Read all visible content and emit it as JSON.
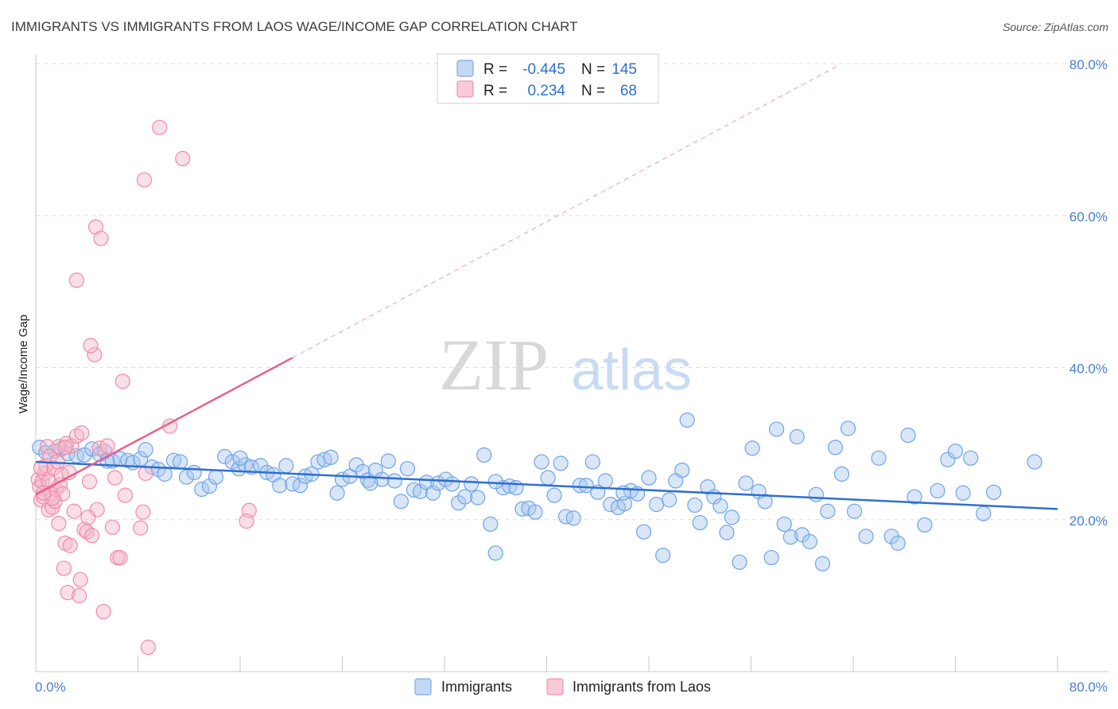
{
  "title": "IMMIGRANTS VS IMMIGRANTS FROM LAOS WAGE/INCOME GAP CORRELATION CHART",
  "source": "Source: ZipAtlas.com",
  "watermark": {
    "zip": "ZIP",
    "atlas": "atlas"
  },
  "legend_box": {
    "rows": [
      {
        "r_label": "R =",
        "r_value": "-0.445",
        "n_label": "N =",
        "n_value": "145",
        "color": "#a9c8f0"
      },
      {
        "r_label": "R =",
        "r_value": "0.234",
        "n_label": "N =",
        "n_value": "68",
        "color": "#f5b8ca"
      }
    ]
  },
  "bottom_legend": [
    {
      "label": "Immigrants",
      "color": "#a9c8f0"
    },
    {
      "label": "Immigrants from Laos",
      "color": "#f5b8ca"
    }
  ],
  "chart_data": {
    "type": "scatter",
    "title": "IMMIGRANTS VS IMMIGRANTS FROM LAOS WAGE/INCOME GAP CORRELATION CHART",
    "xlabel": "",
    "ylabel": "Wage/Income Gap",
    "xlim": [
      0,
      80
    ],
    "ylim": [
      0,
      80
    ],
    "x_tick_labels": [
      "0.0%",
      "80.0%"
    ],
    "y_tick_labels": [
      "20.0%",
      "40.0%",
      "60.0%",
      "80.0%"
    ],
    "y_ticks": [
      20,
      40,
      60,
      80
    ],
    "grid": true,
    "legend_position": "top-center",
    "series": [
      {
        "name": "Immigrants",
        "color": "#6fa3e8",
        "trend": {
          "x": [
            0,
            80
          ],
          "y": [
            27.6,
            21.4
          ],
          "style": "solid",
          "color": "#2f6fcf"
        },
        "points": [
          [
            0.3,
            29.5
          ],
          [
            0.8,
            28.8
          ],
          [
            1.5,
            29.0
          ],
          [
            2.0,
            29.3
          ],
          [
            2.5,
            28.7
          ],
          [
            3.2,
            28.4
          ],
          [
            3.8,
            28.5
          ],
          [
            4.4,
            29.3
          ],
          [
            5.0,
            28.6
          ],
          [
            5.6,
            27.7
          ],
          [
            6.0,
            27.7
          ],
          [
            6.6,
            28.0
          ],
          [
            7.2,
            27.8
          ],
          [
            7.6,
            27.5
          ],
          [
            8.2,
            28.0
          ],
          [
            8.6,
            29.2
          ],
          [
            9.1,
            26.9
          ],
          [
            9.6,
            26.6
          ],
          [
            10.1,
            26.0
          ],
          [
            10.8,
            27.8
          ],
          [
            11.3,
            27.6
          ],
          [
            11.8,
            25.6
          ],
          [
            12.4,
            26.2
          ],
          [
            13.0,
            24.0
          ],
          [
            13.6,
            24.4
          ],
          [
            14.1,
            25.6
          ],
          [
            14.8,
            28.3
          ],
          [
            15.4,
            27.6
          ],
          [
            15.9,
            26.7
          ],
          [
            16.4,
            27.2
          ],
          [
            16.9,
            26.9
          ],
          [
            17.6,
            27.1
          ],
          [
            18.1,
            26.2
          ],
          [
            18.6,
            25.9
          ],
          [
            19.1,
            24.5
          ],
          [
            19.6,
            27.1
          ],
          [
            20.1,
            24.7
          ],
          [
            20.7,
            24.5
          ],
          [
            21.1,
            25.7
          ],
          [
            21.6,
            26.0
          ],
          [
            22.1,
            27.6
          ],
          [
            22.6,
            27.9
          ],
          [
            23.1,
            28.2
          ],
          [
            23.6,
            23.5
          ],
          [
            24.0,
            25.3
          ],
          [
            24.6,
            25.7
          ],
          [
            25.1,
            27.2
          ],
          [
            25.6,
            26.3
          ],
          [
            26.0,
            25.2
          ],
          [
            26.6,
            26.5
          ],
          [
            27.1,
            25.3
          ],
          [
            27.6,
            27.7
          ],
          [
            28.1,
            25.1
          ],
          [
            28.6,
            22.4
          ],
          [
            29.1,
            26.7
          ],
          [
            29.6,
            23.9
          ],
          [
            30.1,
            23.7
          ],
          [
            30.6,
            24.9
          ],
          [
            31.1,
            23.5
          ],
          [
            31.5,
            24.8
          ],
          [
            32.1,
            25.3
          ],
          [
            32.6,
            24.7
          ],
          [
            33.1,
            22.2
          ],
          [
            33.6,
            23.0
          ],
          [
            34.1,
            24.7
          ],
          [
            34.6,
            22.9
          ],
          [
            35.1,
            28.5
          ],
          [
            35.6,
            19.4
          ],
          [
            36.0,
            15.6
          ],
          [
            36.6,
            24.2
          ],
          [
            37.1,
            24.4
          ],
          [
            37.6,
            24.2
          ],
          [
            38.1,
            21.4
          ],
          [
            38.6,
            21.5
          ],
          [
            39.1,
            21.0
          ],
          [
            39.6,
            27.6
          ],
          [
            40.1,
            25.5
          ],
          [
            40.6,
            23.2
          ],
          [
            41.1,
            27.4
          ],
          [
            41.5,
            20.4
          ],
          [
            42.1,
            20.2
          ],
          [
            42.6,
            24.5
          ],
          [
            43.1,
            24.5
          ],
          [
            43.6,
            27.6
          ],
          [
            44.0,
            23.6
          ],
          [
            44.6,
            25.1
          ],
          [
            45.0,
            22.0
          ],
          [
            45.6,
            21.6
          ],
          [
            46.1,
            22.1
          ],
          [
            46.6,
            23.8
          ],
          [
            47.1,
            23.4
          ],
          [
            47.6,
            18.4
          ],
          [
            48.0,
            25.5
          ],
          [
            48.6,
            22.0
          ],
          [
            49.1,
            15.3
          ],
          [
            49.6,
            22.6
          ],
          [
            50.1,
            25.1
          ],
          [
            50.6,
            26.5
          ],
          [
            51.0,
            33.1
          ],
          [
            51.6,
            21.9
          ],
          [
            52.0,
            19.6
          ],
          [
            52.6,
            24.3
          ],
          [
            53.1,
            23.0
          ],
          [
            53.6,
            21.8
          ],
          [
            54.1,
            18.3
          ],
          [
            54.5,
            20.3
          ],
          [
            55.1,
            14.4
          ],
          [
            55.6,
            24.8
          ],
          [
            56.1,
            29.4
          ],
          [
            56.6,
            23.7
          ],
          [
            57.1,
            22.4
          ],
          [
            57.6,
            15.0
          ],
          [
            58.0,
            31.9
          ],
          [
            58.6,
            19.4
          ],
          [
            59.1,
            17.7
          ],
          [
            59.6,
            30.9
          ],
          [
            60.0,
            18.0
          ],
          [
            60.6,
            17.1
          ],
          [
            61.1,
            23.3
          ],
          [
            61.6,
            14.2
          ],
          [
            62.0,
            21.1
          ],
          [
            62.6,
            29.5
          ],
          [
            63.1,
            26.0
          ],
          [
            63.6,
            32.0
          ],
          [
            64.1,
            21.1
          ],
          [
            65.0,
            17.8
          ],
          [
            66.0,
            28.1
          ],
          [
            67.0,
            17.8
          ],
          [
            67.5,
            16.9
          ],
          [
            68.3,
            31.1
          ],
          [
            68.8,
            23.0
          ],
          [
            69.6,
            19.3
          ],
          [
            70.6,
            23.8
          ],
          [
            71.4,
            27.9
          ],
          [
            72.0,
            29.0
          ],
          [
            72.6,
            23.5
          ],
          [
            73.2,
            28.1
          ],
          [
            74.2,
            20.8
          ],
          [
            75.0,
            23.6
          ],
          [
            78.2,
            27.6
          ],
          [
            5.4,
            29.0
          ],
          [
            16.0,
            28.1
          ],
          [
            26.2,
            24.8
          ],
          [
            36.0,
            25.0
          ],
          [
            46.0,
            23.5
          ]
        ]
      },
      {
        "name": "Immigrants from Laos",
        "color": "#f08aa8",
        "trend": {
          "x": [
            0,
            20.1
          ],
          "y": [
            23.3,
            41.3
          ],
          "style": "solid",
          "color": "#e8608a",
          "dashed_extension": {
            "x": [
              20.1,
              62.9
            ],
            "y": [
              41.3,
              79.8
            ]
          }
        },
        "points": [
          [
            0.2,
            25.3
          ],
          [
            0.3,
            24.3
          ],
          [
            0.4,
            22.6
          ],
          [
            0.5,
            25.0
          ],
          [
            0.6,
            23.0
          ],
          [
            0.7,
            26.1
          ],
          [
            0.8,
            27.1
          ],
          [
            0.9,
            29.6
          ],
          [
            1.0,
            21.3
          ],
          [
            1.1,
            28.3
          ],
          [
            1.2,
            23.5
          ],
          [
            1.3,
            21.6
          ],
          [
            1.4,
            26.8
          ],
          [
            1.5,
            22.4
          ],
          [
            1.6,
            24.0
          ],
          [
            1.7,
            27.6
          ],
          [
            1.8,
            29.6
          ],
          [
            1.9,
            24.6
          ],
          [
            2.0,
            25.9
          ],
          [
            2.1,
            23.4
          ],
          [
            2.2,
            13.6
          ],
          [
            2.3,
            16.9
          ],
          [
            2.4,
            30.0
          ],
          [
            2.5,
            10.4
          ],
          [
            2.6,
            26.2
          ],
          [
            2.8,
            29.7
          ],
          [
            3.0,
            21.1
          ],
          [
            3.2,
            31.0
          ],
          [
            3.4,
            10.0
          ],
          [
            3.6,
            31.4
          ],
          [
            3.8,
            18.7
          ],
          [
            4.0,
            18.4
          ],
          [
            4.2,
            25.0
          ],
          [
            4.4,
            17.9
          ],
          [
            4.6,
            41.7
          ],
          [
            4.8,
            21.3
          ],
          [
            5.0,
            29.4
          ],
          [
            5.3,
            7.9
          ],
          [
            5.6,
            29.7
          ],
          [
            6.0,
            19.0
          ],
          [
            6.2,
            25.5
          ],
          [
            6.4,
            15.0
          ],
          [
            6.6,
            15.0
          ],
          [
            6.8,
            38.2
          ],
          [
            7.0,
            23.2
          ],
          [
            8.2,
            18.9
          ],
          [
            8.4,
            21.0
          ],
          [
            8.6,
            26.1
          ],
          [
            8.8,
            3.2
          ],
          [
            10.5,
            32.3
          ],
          [
            9.7,
            71.6
          ],
          [
            11.5,
            67.5
          ],
          [
            8.5,
            64.7
          ],
          [
            4.7,
            58.5
          ],
          [
            5.1,
            57.0
          ],
          [
            3.2,
            51.5
          ],
          [
            4.3,
            42.9
          ],
          [
            16.7,
            21.2
          ],
          [
            16.5,
            19.8
          ],
          [
            1.0,
            25.0
          ],
          [
            1.3,
            22.8
          ],
          [
            2.7,
            16.6
          ],
          [
            0.4,
            26.8
          ],
          [
            0.6,
            23.5
          ],
          [
            3.5,
            12.1
          ],
          [
            1.8,
            19.5
          ],
          [
            4.1,
            20.3
          ],
          [
            2.3,
            29.5
          ]
        ]
      }
    ]
  }
}
